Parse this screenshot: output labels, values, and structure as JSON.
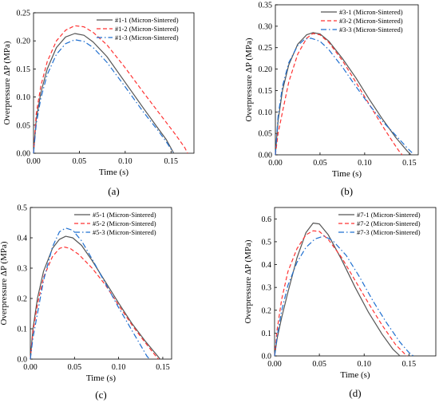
{
  "chart_data": [
    {
      "type": "line",
      "panel_label": "(a)",
      "xlabel": "Time (s)",
      "ylabel": "Overpressure ΔP  (MPa)",
      "xlim": [
        0,
        0.175
      ],
      "ylim": [
        0,
        0.25
      ],
      "xticks": [
        0.0,
        0.05,
        0.1,
        0.15
      ],
      "xtick_labels": [
        "0.00",
        "0.05",
        "0.10",
        "0.15"
      ],
      "yticks": [
        0.0,
        0.05,
        0.1,
        0.15,
        0.2,
        0.25
      ],
      "ytick_labels": [
        "0.00",
        "0.05",
        "0.10",
        "0.15",
        "0.20",
        "0.25"
      ],
      "legend_position": "top-right",
      "series": [
        {
          "name": "#1-1 (Micron-Sintered)",
          "color": "#555555",
          "style": "solid",
          "points": [
            [
              0,
              0
            ],
            [
              0.003,
              0.06
            ],
            [
              0.008,
              0.108
            ],
            [
              0.015,
              0.15
            ],
            [
              0.025,
              0.188
            ],
            [
              0.035,
              0.207
            ],
            [
              0.045,
              0.213
            ],
            [
              0.055,
              0.21
            ],
            [
              0.065,
              0.198
            ],
            [
              0.08,
              0.172
            ],
            [
              0.1,
              0.126
            ],
            [
              0.12,
              0.08
            ],
            [
              0.135,
              0.046
            ],
            [
              0.145,
              0.024
            ],
            [
              0.153,
              0.0
            ]
          ]
        },
        {
          "name": "#1-2 (Micron-Sintered)",
          "color": "#ff3333",
          "style": "dash",
          "points": [
            [
              0,
              0
            ],
            [
              0.003,
              0.07
            ],
            [
              0.008,
              0.12
            ],
            [
              0.015,
              0.163
            ],
            [
              0.025,
              0.2
            ],
            [
              0.035,
              0.219
            ],
            [
              0.045,
              0.227
            ],
            [
              0.055,
              0.225
            ],
            [
              0.065,
              0.215
            ],
            [
              0.08,
              0.193
            ],
            [
              0.1,
              0.152
            ],
            [
              0.12,
              0.108
            ],
            [
              0.14,
              0.065
            ],
            [
              0.155,
              0.033
            ],
            [
              0.165,
              0.01
            ],
            [
              0.168,
              0.0
            ]
          ]
        },
        {
          "name": "#1-3 (Micron-Sintered)",
          "color": "#1f6fd0",
          "style": "dashdot",
          "points": [
            [
              0,
              0
            ],
            [
              0.003,
              0.052
            ],
            [
              0.008,
              0.098
            ],
            [
              0.015,
              0.14
            ],
            [
              0.025,
              0.176
            ],
            [
              0.035,
              0.195
            ],
            [
              0.045,
              0.202
            ],
            [
              0.055,
              0.199
            ],
            [
              0.065,
              0.188
            ],
            [
              0.08,
              0.162
            ],
            [
              0.1,
              0.118
            ],
            [
              0.12,
              0.073
            ],
            [
              0.135,
              0.042
            ],
            [
              0.145,
              0.02
            ],
            [
              0.152,
              0.002
            ]
          ]
        }
      ]
    },
    {
      "type": "line",
      "panel_label": "(b)",
      "xlabel": "Time (s)",
      "ylabel": "Overpressure ΔP  (MPa)",
      "xlim": [
        0,
        0.16
      ],
      "ylim": [
        0,
        0.35
      ],
      "xticks": [
        0.0,
        0.05,
        0.1,
        0.15
      ],
      "xtick_labels": [
        "0.00",
        "0.05",
        "0.10",
        "0.15"
      ],
      "yticks": [
        0.0,
        0.05,
        0.1,
        0.15,
        0.2,
        0.25,
        0.3,
        0.35
      ],
      "ytick_labels": [
        "0.00",
        "0.05",
        "0.10",
        "0.15",
        "0.20",
        "0.25",
        "0.30",
        "0.35"
      ],
      "legend_position": "top-right",
      "series": [
        {
          "name": "#3-1 (Micron-Sintered)",
          "color": "#555555",
          "style": "solid",
          "points": [
            [
              0,
              0
            ],
            [
              0.003,
              0.08
            ],
            [
              0.008,
              0.15
            ],
            [
              0.015,
              0.21
            ],
            [
              0.025,
              0.258
            ],
            [
              0.035,
              0.28
            ],
            [
              0.042,
              0.285
            ],
            [
              0.05,
              0.282
            ],
            [
              0.06,
              0.265
            ],
            [
              0.075,
              0.225
            ],
            [
              0.09,
              0.18
            ],
            [
              0.105,
              0.13
            ],
            [
              0.12,
              0.083
            ],
            [
              0.135,
              0.04
            ],
            [
              0.148,
              0.008
            ],
            [
              0.152,
              0.0
            ]
          ]
        },
        {
          "name": "#3-2 (Micron-Sintered)",
          "color": "#ff3333",
          "style": "dash",
          "points": [
            [
              0,
              0
            ],
            [
              0.003,
              0.05
            ],
            [
              0.008,
              0.1
            ],
            [
              0.015,
              0.17
            ],
            [
              0.025,
              0.235
            ],
            [
              0.035,
              0.272
            ],
            [
              0.042,
              0.283
            ],
            [
              0.05,
              0.28
            ],
            [
              0.06,
              0.262
            ],
            [
              0.075,
              0.22
            ],
            [
              0.09,
              0.17
            ],
            [
              0.105,
              0.118
            ],
            [
              0.12,
              0.067
            ],
            [
              0.13,
              0.035
            ],
            [
              0.138,
              0.01
            ],
            [
              0.142,
              0.0
            ]
          ]
        },
        {
          "name": "#3-3 (Micron-Sintered)",
          "color": "#1f6fd0",
          "style": "dashdot",
          "points": [
            [
              0,
              0
            ],
            [
              0.003,
              0.09
            ],
            [
              0.008,
              0.16
            ],
            [
              0.015,
              0.215
            ],
            [
              0.025,
              0.255
            ],
            [
              0.033,
              0.27
            ],
            [
              0.04,
              0.272
            ],
            [
              0.05,
              0.265
            ],
            [
              0.06,
              0.245
            ],
            [
              0.075,
              0.205
            ],
            [
              0.09,
              0.16
            ],
            [
              0.105,
              0.117
            ],
            [
              0.12,
              0.078
            ],
            [
              0.135,
              0.045
            ],
            [
              0.148,
              0.015
            ],
            [
              0.153,
              0.005
            ]
          ]
        }
      ]
    },
    {
      "type": "line",
      "panel_label": "(c)",
      "xlabel": "Time (s)",
      "ylabel": "Overpressure ΔP  (MPa)",
      "xlim": [
        0,
        0.16
      ],
      "ylim": [
        0,
        0.5
      ],
      "xticks": [
        0.0,
        0.05,
        0.1,
        0.15
      ],
      "xtick_labels": [
        "0.00",
        "0.05",
        "0.10",
        "0.15"
      ],
      "yticks": [
        0.0,
        0.1,
        0.2,
        0.3,
        0.4,
        0.5
      ],
      "ytick_labels": [
        "0.0",
        "0.1",
        "0.2",
        "0.3",
        "0.4",
        "0.5"
      ],
      "legend_position": "top-right",
      "series": [
        {
          "name": "#5-1 (Micron-Sintered)",
          "color": "#555555",
          "style": "solid",
          "points": [
            [
              0,
              0
            ],
            [
              0.003,
              0.1
            ],
            [
              0.008,
              0.2
            ],
            [
              0.015,
              0.29
            ],
            [
              0.025,
              0.365
            ],
            [
              0.033,
              0.395
            ],
            [
              0.04,
              0.405
            ],
            [
              0.048,
              0.4
            ],
            [
              0.058,
              0.375
            ],
            [
              0.07,
              0.325
            ],
            [
              0.085,
              0.255
            ],
            [
              0.1,
              0.185
            ],
            [
              0.115,
              0.118
            ],
            [
              0.13,
              0.06
            ],
            [
              0.142,
              0.018
            ],
            [
              0.147,
              0.0
            ]
          ]
        },
        {
          "name": "#5-2 (Micron-Sintered)",
          "color": "#ff3333",
          "style": "dash",
          "points": [
            [
              0,
              0
            ],
            [
              0.003,
              0.09
            ],
            [
              0.008,
              0.18
            ],
            [
              0.015,
              0.27
            ],
            [
              0.025,
              0.338
            ],
            [
              0.033,
              0.365
            ],
            [
              0.038,
              0.37
            ],
            [
              0.045,
              0.365
            ],
            [
              0.055,
              0.345
            ],
            [
              0.07,
              0.3
            ],
            [
              0.085,
              0.245
            ],
            [
              0.1,
              0.178
            ],
            [
              0.115,
              0.113
            ],
            [
              0.13,
              0.055
            ],
            [
              0.14,
              0.018
            ],
            [
              0.145,
              0.0
            ]
          ]
        },
        {
          "name": "#5-3 (Micron-Sintered)",
          "color": "#1f6fd0",
          "style": "dashdot",
          "points": [
            [
              0,
              0
            ],
            [
              0.003,
              0.07
            ],
            [
              0.008,
              0.15
            ],
            [
              0.015,
              0.26
            ],
            [
              0.025,
              0.37
            ],
            [
              0.033,
              0.42
            ],
            [
              0.04,
              0.432
            ],
            [
              0.048,
              0.425
            ],
            [
              0.058,
              0.39
            ],
            [
              0.07,
              0.33
            ],
            [
              0.085,
              0.25
            ],
            [
              0.1,
              0.17
            ],
            [
              0.115,
              0.095
            ],
            [
              0.125,
              0.045
            ],
            [
              0.132,
              0.01
            ],
            [
              0.135,
              0.0
            ]
          ]
        }
      ]
    },
    {
      "type": "line",
      "panel_label": "(d)",
      "xlabel": "Time (s)",
      "ylabel": "Overpressure ΔP  (MPa)",
      "xlim": [
        0,
        0.18
      ],
      "ylim": [
        0,
        0.65
      ],
      "xticks": [
        0.0,
        0.05,
        0.1,
        0.15
      ],
      "xtick_labels": [
        "0.00",
        "0.05",
        "0.10",
        "0.15"
      ],
      "yticks": [
        0.0,
        0.1,
        0.2,
        0.3,
        0.4,
        0.5,
        0.6
      ],
      "ytick_labels": [
        "0.0",
        "0.1",
        "0.2",
        "0.3",
        "0.4",
        "0.5",
        "0.6"
      ],
      "legend_position": "top-right",
      "series": [
        {
          "name": "#7-1 (Micron-Sintered)",
          "color": "#555555",
          "style": "solid",
          "points": [
            [
              0,
              0
            ],
            [
              0.003,
              0.08
            ],
            [
              0.008,
              0.17
            ],
            [
              0.015,
              0.28
            ],
            [
              0.025,
              0.43
            ],
            [
              0.035,
              0.54
            ],
            [
              0.043,
              0.582
            ],
            [
              0.05,
              0.578
            ],
            [
              0.06,
              0.53
            ],
            [
              0.075,
              0.42
            ],
            [
              0.09,
              0.3
            ],
            [
              0.105,
              0.19
            ],
            [
              0.12,
              0.095
            ],
            [
              0.132,
              0.03
            ],
            [
              0.14,
              0.0
            ]
          ]
        },
        {
          "name": "#7-2 (Micron-Sintered)",
          "color": "#ff3333",
          "style": "dash",
          "points": [
            [
              0,
              0
            ],
            [
              0.003,
              0.12
            ],
            [
              0.008,
              0.25
            ],
            [
              0.015,
              0.37
            ],
            [
              0.025,
              0.47
            ],
            [
              0.035,
              0.53
            ],
            [
              0.043,
              0.548
            ],
            [
              0.05,
              0.545
            ],
            [
              0.06,
              0.51
            ],
            [
              0.075,
              0.43
            ],
            [
              0.09,
              0.33
            ],
            [
              0.105,
              0.23
            ],
            [
              0.12,
              0.135
            ],
            [
              0.135,
              0.05
            ],
            [
              0.145,
              0.01
            ],
            [
              0.148,
              0.0
            ]
          ]
        },
        {
          "name": "#7-3 (Micron-Sintered)",
          "color": "#1f6fd0",
          "style": "dashdot",
          "points": [
            [
              0,
              0
            ],
            [
              0.003,
              0.09
            ],
            [
              0.008,
              0.2
            ],
            [
              0.015,
              0.31
            ],
            [
              0.025,
              0.41
            ],
            [
              0.035,
              0.475
            ],
            [
              0.045,
              0.512
            ],
            [
              0.055,
              0.525
            ],
            [
              0.065,
              0.505
            ],
            [
              0.08,
              0.44
            ],
            [
              0.095,
              0.345
            ],
            [
              0.11,
              0.24
            ],
            [
              0.125,
              0.145
            ],
            [
              0.14,
              0.06
            ],
            [
              0.15,
              0.015
            ],
            [
              0.155,
              0.0
            ]
          ]
        }
      ]
    }
  ]
}
